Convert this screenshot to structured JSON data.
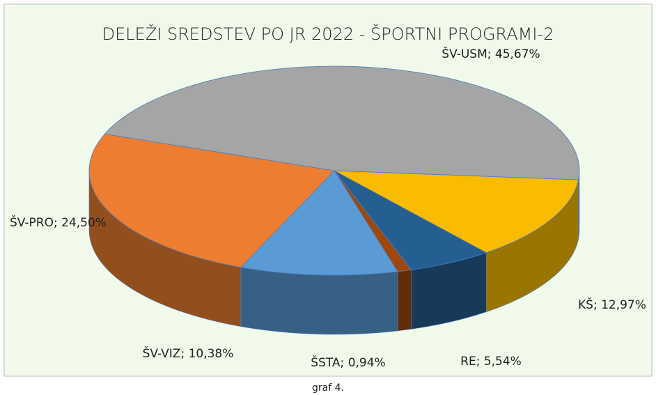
{
  "chart_data": {
    "type": "pie3d",
    "title": "DELEŽI SREDSTEV PO JR 2022 - ŠPORTNI PROGRAMI-2",
    "values": [
      12.97,
      5.54,
      0.94,
      10.38,
      24.5,
      45.67
    ],
    "value_labels": [
      "KŠ; 12,97%",
      "RE; 5,54%",
      "ŠSTA; 0,94%",
      "ŠV-VIZ; 10,38%",
      "ŠV-PRO; 24,50%",
      "ŠV-USM; 45,67%"
    ],
    "colors": [
      "#f9bc00",
      "#255e91",
      "#9e480e",
      "#5b9bd5",
      "#ed7d31",
      "#a5a5a5"
    ],
    "caption": "graf 4."
  }
}
